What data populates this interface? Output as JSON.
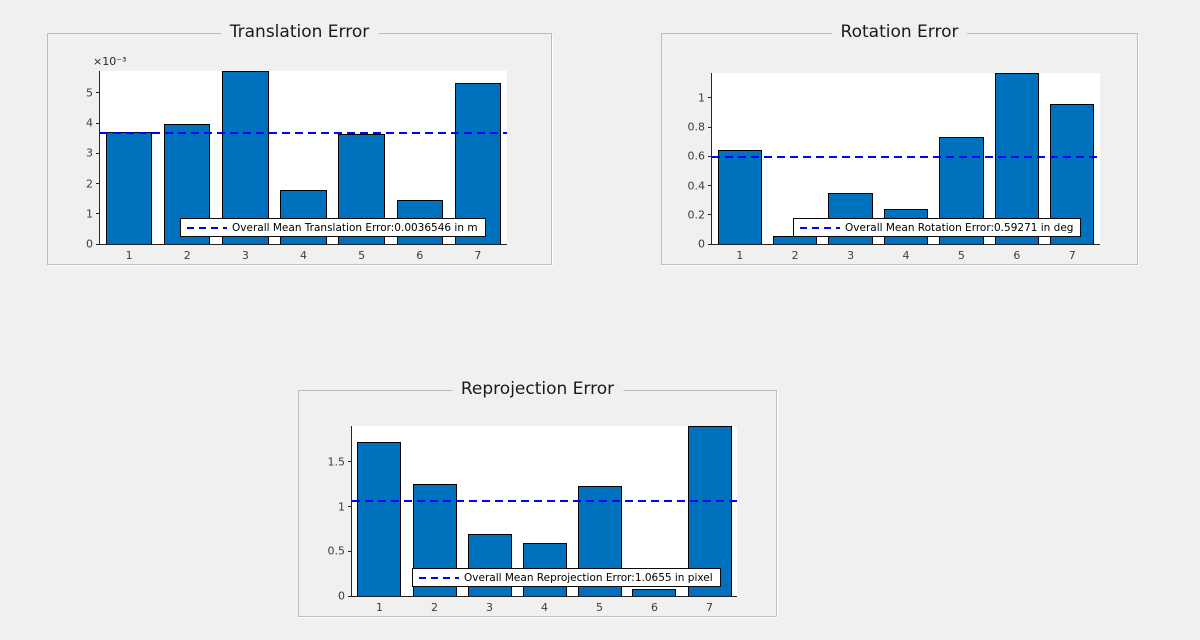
{
  "colors": {
    "figure_background": "#f0f0f0",
    "plot_background": "#ffffff",
    "bar_fill": "#0072bd",
    "bar_edge": "#000000",
    "mean_line": "#0000ff",
    "axis": "#262626",
    "panel_border": "#bdbdbd",
    "legend_background": "#ffffff",
    "legend_border": "#000000"
  },
  "chart_data": [
    {
      "type": "bar",
      "title": "Translation Error",
      "categories": [
        "1",
        "2",
        "3",
        "4",
        "5",
        "6",
        "7"
      ],
      "values": [
        0.0037,
        0.00397,
        0.00572,
        0.00178,
        0.00364,
        0.00144,
        0.00533
      ],
      "bar_width_fraction": 0.8,
      "xlabel": "",
      "ylabel": "",
      "ylim": [
        0,
        0.00572
      ],
      "y_ticks": [
        0,
        0.001,
        0.002,
        0.003,
        0.004,
        0.005
      ],
      "y_tick_labels": [
        "0",
        "1",
        "2",
        "3",
        "4",
        "5"
      ],
      "y_exponent_label": "×10⁻³",
      "mean_value": 0.0036546,
      "mean_line_style": "dashed",
      "grid": false,
      "legend_label": "Overall Mean Translation Error:0.0036546 in m",
      "legend_position": "inside-bottom-center"
    },
    {
      "type": "bar",
      "title": "Rotation Error",
      "categories": [
        "1",
        "2",
        "3",
        "4",
        "5",
        "6",
        "7"
      ],
      "values": [
        0.64,
        0.055,
        0.35,
        0.24,
        0.73,
        1.17,
        0.96
      ],
      "bar_width_fraction": 0.8,
      "xlabel": "",
      "ylabel": "",
      "ylim": [
        0,
        1.17
      ],
      "y_ticks": [
        0,
        0.2,
        0.4,
        0.6,
        0.8,
        1
      ],
      "y_tick_labels": [
        "0",
        "0.2",
        "0.4",
        "0.6",
        "0.8",
        "1"
      ],
      "mean_value": 0.59271,
      "mean_line_style": "dashed",
      "grid": false,
      "legend_label": "Overall Mean Rotation Error:0.59271 in deg",
      "legend_position": "inside-bottom-center"
    },
    {
      "type": "bar",
      "title": "Reprojection Error",
      "categories": [
        "1",
        "2",
        "3",
        "4",
        "5",
        "6",
        "7"
      ],
      "values": [
        1.72,
        1.25,
        0.69,
        0.59,
        1.23,
        0.08,
        1.9
      ],
      "bar_width_fraction": 0.8,
      "xlabel": "",
      "ylabel": "",
      "ylim": [
        0,
        1.9
      ],
      "y_ticks": [
        0,
        0.5,
        1,
        1.5
      ],
      "y_tick_labels": [
        "0",
        "0.5",
        "1",
        "1.5"
      ],
      "mean_value": 1.0655,
      "mean_line_style": "dashed",
      "grid": false,
      "legend_label": "Overall Mean Reprojection Error:1.0655 in pixel",
      "legend_position": "inside-bottom-center"
    }
  ]
}
